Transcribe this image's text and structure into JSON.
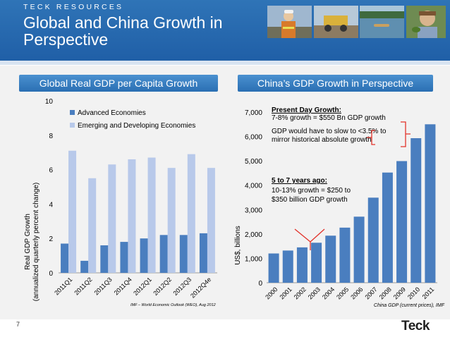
{
  "header": {
    "company": "TECK RESOURCES",
    "title": "Global and China Growth in Perspective",
    "photos": [
      "worker-photo",
      "mining-truck-photo",
      "lake-canoe-photo",
      "child-frog-photo"
    ]
  },
  "left_panel": {
    "title": "Global Real GDP per Capita Growth",
    "source": "IMF – World Economic Outlook (WEO), Aug 2012"
  },
  "right_panel": {
    "title": "China’s GDP Growth in Perspective",
    "source": "China GDP (current prices), IMF",
    "annotation_top": {
      "heading": "Present Day Growth:",
      "line1": "7-8% growth = $550 Bn GDP growth",
      "line2": "GDP would have to slow to <3.5% to",
      "line3": "mirror historical absolute growth"
    },
    "annotation_mid": {
      "heading": "5 to 7 years ago:",
      "line1": "10-13% growth = $250 to",
      "line2": "$350 billion GDP growth"
    }
  },
  "footer": {
    "page": "7",
    "logo": "Teck"
  },
  "colors": {
    "header": "#1f5ea6",
    "advanced": "#4a7ebf",
    "emerging": "#b8c9ea",
    "china": "#4a7ebf",
    "highlight": "#e2322a"
  },
  "chart_data": [
    {
      "type": "bar",
      "title": "Global Real GDP per Capita Growth",
      "ylabel": "Real GDP Growth (annualized quarterly percent change)",
      "xlabel": "",
      "categories": [
        "2011Q1",
        "2011Q2",
        "2011Q3",
        "2011Q4",
        "2012Q1",
        "2012Q2",
        "2012Q3",
        "2012Q4e"
      ],
      "ylim": [
        0,
        10
      ],
      "yticks": [
        "0",
        "2",
        "4",
        "6",
        "8",
        "10"
      ],
      "legend": "top",
      "series": [
        {
          "name": "Advanced Economies",
          "values": [
            1.7,
            0.7,
            1.6,
            1.8,
            2.0,
            2.2,
            2.2,
            2.3
          ]
        },
        {
          "name": "Emerging and Developing Economies",
          "values": [
            7.1,
            5.5,
            6.3,
            6.6,
            6.7,
            6.1,
            6.9,
            6.1
          ]
        }
      ]
    },
    {
      "type": "bar",
      "title": "China’s GDP Growth in Perspective",
      "ylabel": "US$, billions",
      "xlabel": "",
      "categories": [
        "2000",
        "2001",
        "2002",
        "2003",
        "2004",
        "2005",
        "2006",
        "2007",
        "2008",
        "2009",
        "2010",
        "2011"
      ],
      "values": [
        1200,
        1320,
        1450,
        1640,
        1930,
        2260,
        2710,
        3490,
        4520,
        4990,
        5930,
        6500
      ],
      "ylim": [
        0,
        7000
      ],
      "yticks": [
        "0",
        "1,000",
        "2,000",
        "3,000",
        "4,000",
        "5,000",
        "6,000",
        "7,000"
      ]
    }
  ]
}
